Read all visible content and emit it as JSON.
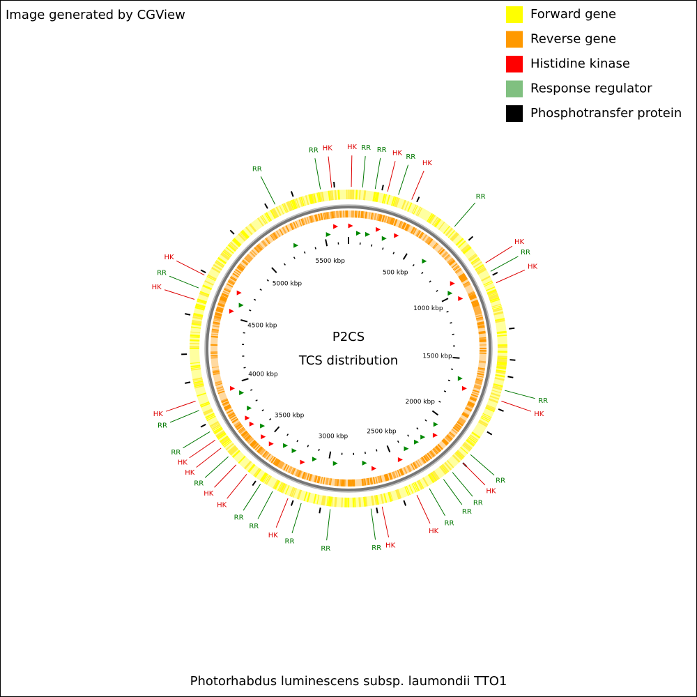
{
  "header": {
    "credit": "Image generated by CGView"
  },
  "legend": [
    {
      "label": "Forward gene",
      "color": "#ffff00"
    },
    {
      "label": "Reverse gene",
      "color": "#ff9900"
    },
    {
      "label": "Histidine kinase",
      "color": "#ff0000"
    },
    {
      "label": "Response regulator",
      "color": "#80c080"
    },
    {
      "label": "Phosphotransfer protein",
      "color": "#000000"
    }
  ],
  "center": {
    "title": "P2CS",
    "subtitle": "TCS distribution"
  },
  "scale_labels": [
    "500 kbp",
    "1000 kbp",
    "1500 kbp",
    "2000 kbp",
    "2500 kbp",
    "3000 kbp",
    "3500 kbp",
    "4000 kbp",
    "4500 kbp",
    "5000 kbp",
    "5500 kbp"
  ],
  "callouts": [
    {
      "text": "RR",
      "color": "#007700"
    },
    {
      "text": "RR",
      "color": "#007700"
    },
    {
      "text": "HK",
      "color": "#dd0000"
    },
    {
      "text": "HK",
      "color": "#dd0000"
    },
    {
      "text": "RR",
      "color": "#007700"
    },
    {
      "text": "RR",
      "color": "#007700"
    },
    {
      "text": "HK",
      "color": "#dd0000"
    },
    {
      "text": "RR",
      "color": "#007700"
    },
    {
      "text": "HK",
      "color": "#dd0000"
    },
    {
      "text": "RR",
      "color": "#007700"
    },
    {
      "text": "HK",
      "color": "#dd0000"
    },
    {
      "text": "RR",
      "color": "#007700"
    },
    {
      "text": "HK",
      "color": "#dd0000"
    },
    {
      "text": "RR",
      "color": "#007700"
    },
    {
      "text": "HK",
      "color": "#dd0000"
    },
    {
      "text": "RR",
      "color": "#007700"
    },
    {
      "text": "HK",
      "color": "#dd0000"
    },
    {
      "text": "RR",
      "color": "#007700"
    },
    {
      "text": "RR",
      "color": "#007700"
    },
    {
      "text": "RR",
      "color": "#007700"
    },
    {
      "text": "HK",
      "color": "#dd0000"
    },
    {
      "text": "HK",
      "color": "#dd0000"
    },
    {
      "text": "RR",
      "color": "#007700"
    },
    {
      "text": "RR",
      "color": "#007700"
    },
    {
      "text": "RR",
      "color": "#007700"
    },
    {
      "text": "HK",
      "color": "#dd0000"
    },
    {
      "text": "RR",
      "color": "#007700"
    },
    {
      "text": "RR",
      "color": "#007700"
    },
    {
      "text": "HK",
      "color": "#dd0000"
    },
    {
      "text": "HK",
      "color": "#dd0000"
    },
    {
      "text": "RR",
      "color": "#007700"
    },
    {
      "text": "HK",
      "color": "#dd0000"
    },
    {
      "text": "HK",
      "color": "#dd0000"
    },
    {
      "text": "RR",
      "color": "#007700"
    },
    {
      "text": "RR",
      "color": "#007700"
    },
    {
      "text": "HK",
      "color": "#dd0000"
    },
    {
      "text": "HK",
      "color": "#dd0000"
    },
    {
      "text": "RR",
      "color": "#007700"
    },
    {
      "text": "HK",
      "color": "#dd0000"
    }
  ],
  "footer": {
    "organism": "Photorhabdus luminescens subsp. laumondii TTO1"
  }
}
